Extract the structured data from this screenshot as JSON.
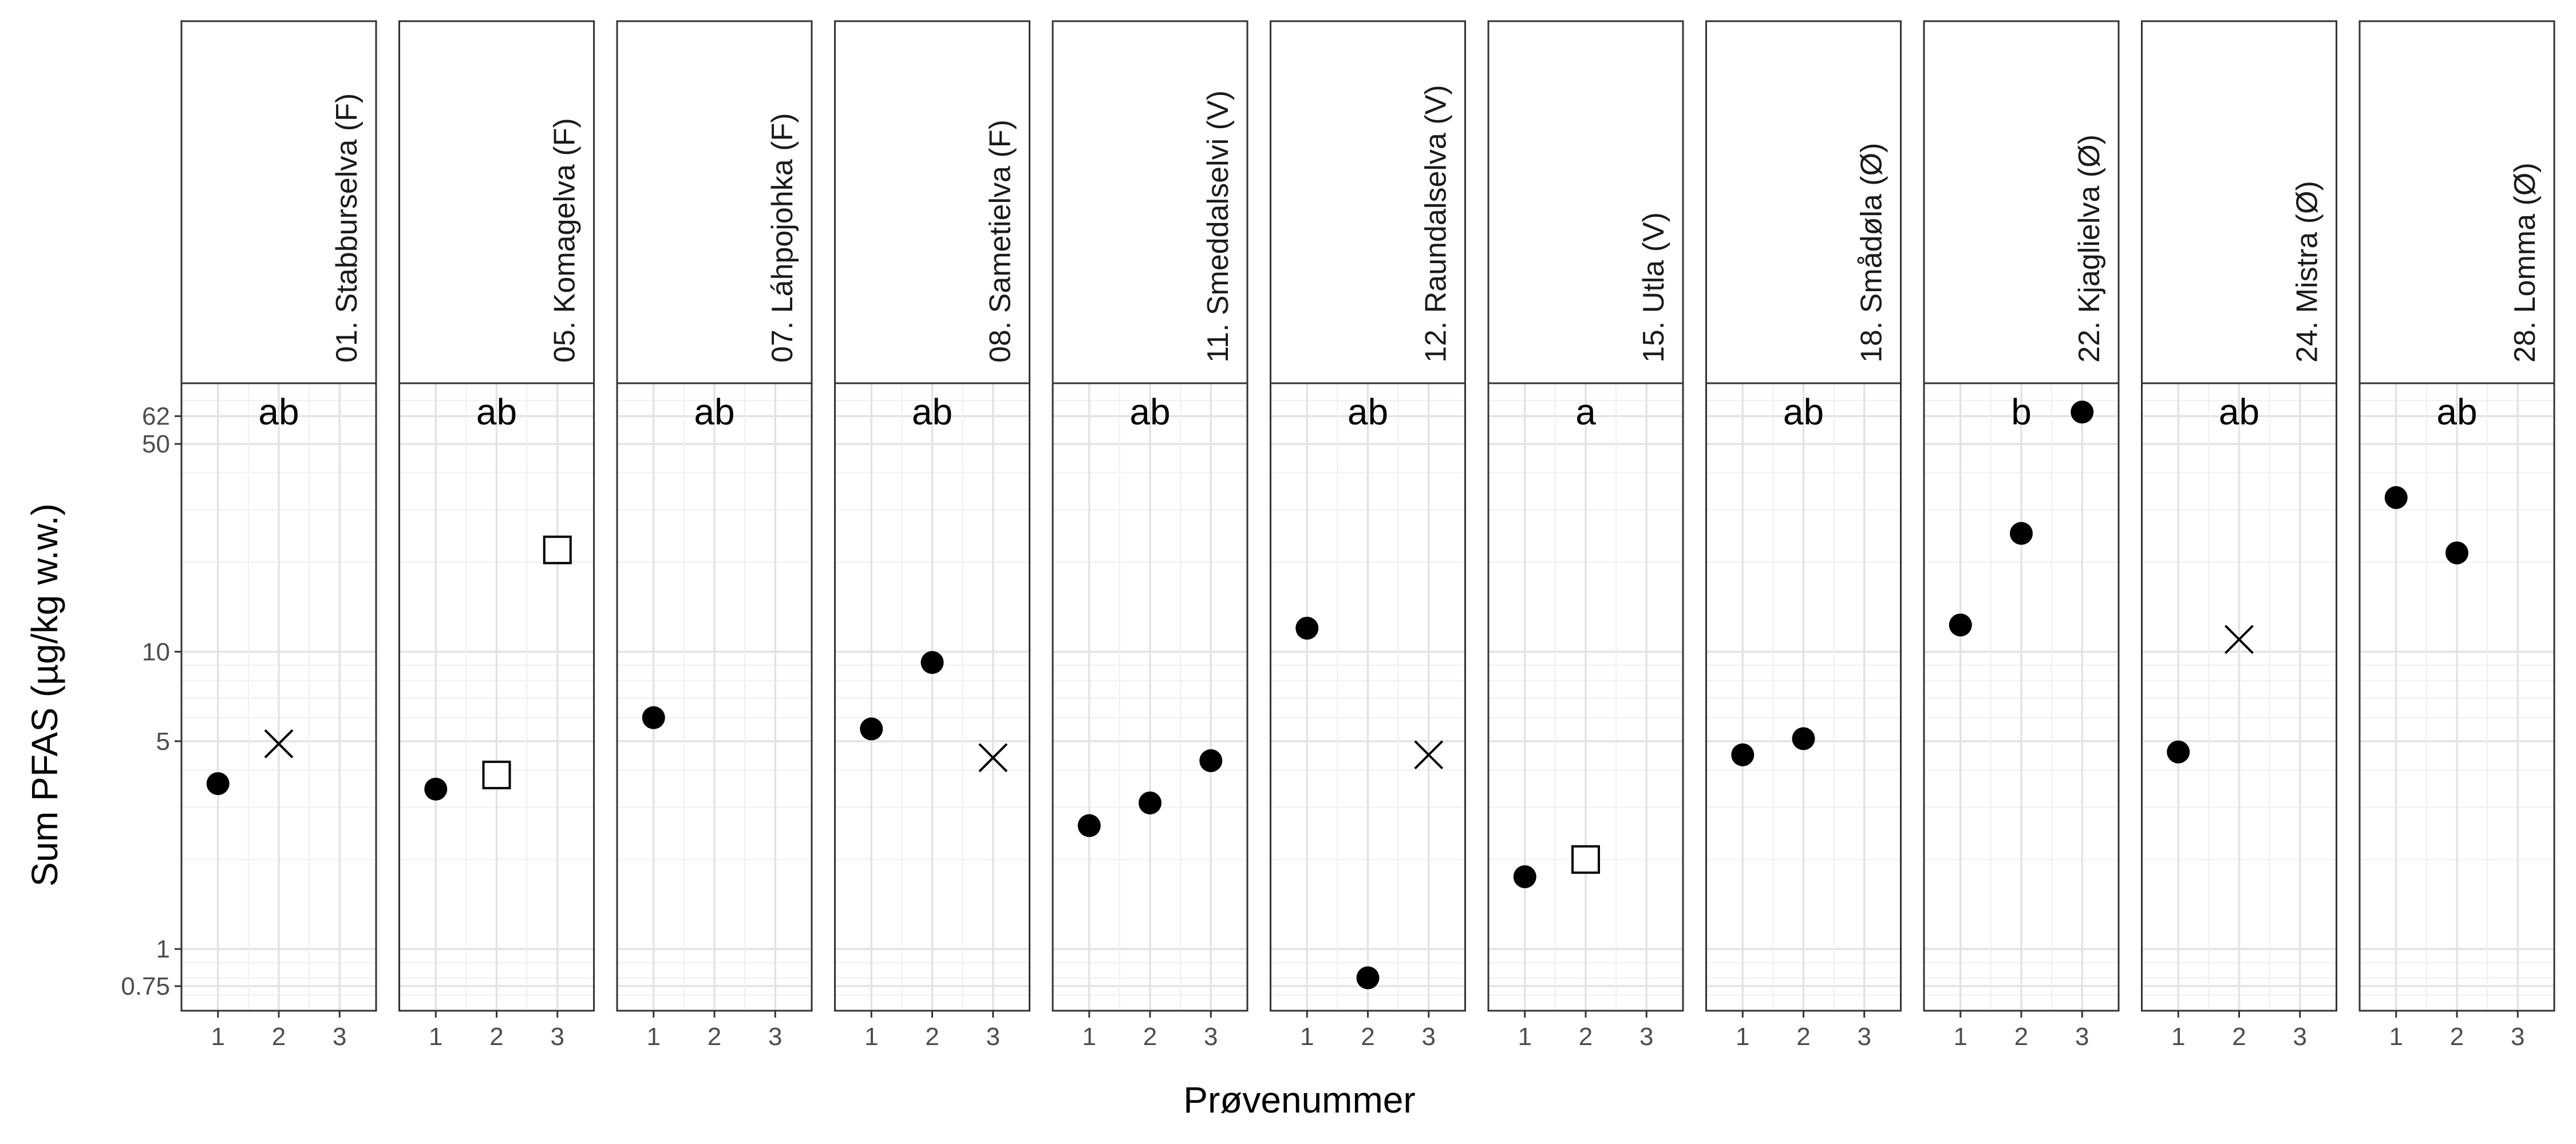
{
  "chart_data": {
    "type": "scatter",
    "xlabel": "Prøvenummer",
    "ylabel": "Sum PFAS (µg/kg w.w.)",
    "y_scale": "log",
    "ylim": [
      0.62,
      80
    ],
    "y_ticks": [
      {
        "value": 0.75,
        "label": "0.75"
      },
      {
        "value": 1,
        "label": "1"
      },
      {
        "value": 5,
        "label": "5"
      },
      {
        "value": 10,
        "label": "10"
      },
      {
        "value": 50,
        "label": "50"
      },
      {
        "value": 62,
        "label": "62"
      }
    ],
    "x_ticks": [
      "1",
      "2",
      "3"
    ],
    "xlim": [
      0.4,
      3.6
    ],
    "grid": true,
    "marker_colors": {
      "fill": "#000000",
      "stroke": "#000000",
      "open_fill": "#ffffff"
    },
    "panels": [
      {
        "label": "01. Stabburselva (F)",
        "group": "ab",
        "points": [
          {
            "x": 1,
            "y": 3.6,
            "shape": "circle"
          },
          {
            "x": 2,
            "y": 4.9,
            "shape": "cross"
          }
        ]
      },
      {
        "label": "05. Komagelva (F)",
        "group": "ab",
        "points": [
          {
            "x": 1,
            "y": 3.45,
            "shape": "circle"
          },
          {
            "x": 2,
            "y": 3.85,
            "shape": "square"
          },
          {
            "x": 3,
            "y": 22,
            "shape": "square"
          }
        ]
      },
      {
        "label": "07. Láhpojohka (F)",
        "group": "ab",
        "points": [
          {
            "x": 1,
            "y": 6.0,
            "shape": "circle"
          }
        ]
      },
      {
        "label": "08. Sametielva (F)",
        "group": "ab",
        "points": [
          {
            "x": 1,
            "y": 5.5,
            "shape": "circle"
          },
          {
            "x": 2,
            "y": 9.2,
            "shape": "circle"
          },
          {
            "x": 3,
            "y": 4.4,
            "shape": "cross"
          }
        ]
      },
      {
        "label": "11. Smeddalselvi (V)",
        "group": "ab",
        "points": [
          {
            "x": 1,
            "y": 2.6,
            "shape": "circle"
          },
          {
            "x": 2,
            "y": 3.1,
            "shape": "circle"
          },
          {
            "x": 3,
            "y": 4.3,
            "shape": "circle"
          }
        ]
      },
      {
        "label": "12. Raundalselva (V)",
        "group": "ab",
        "points": [
          {
            "x": 1,
            "y": 12,
            "shape": "circle"
          },
          {
            "x": 2,
            "y": 0.8,
            "shape": "circle"
          },
          {
            "x": 3,
            "y": 4.5,
            "shape": "cross"
          }
        ]
      },
      {
        "label": "15. Utla (V)",
        "group": "a",
        "points": [
          {
            "x": 1,
            "y": 1.75,
            "shape": "circle"
          },
          {
            "x": 2,
            "y": 2.0,
            "shape": "square"
          }
        ]
      },
      {
        "label": "18. Smådøla (Ø)",
        "group": "ab",
        "points": [
          {
            "x": 1,
            "y": 4.5,
            "shape": "circle"
          },
          {
            "x": 2,
            "y": 5.1,
            "shape": "circle"
          }
        ]
      },
      {
        "label": "22. Kjaglielva (Ø)",
        "group": "b",
        "points": [
          {
            "x": 1,
            "y": 12.3,
            "shape": "circle"
          },
          {
            "x": 2,
            "y": 25,
            "shape": "circle"
          },
          {
            "x": 3,
            "y": 64,
            "shape": "circle"
          }
        ]
      },
      {
        "label": "24. Mistra (Ø)",
        "group": "ab",
        "points": [
          {
            "x": 1,
            "y": 4.6,
            "shape": "circle"
          },
          {
            "x": 2,
            "y": 11.0,
            "shape": "cross"
          }
        ]
      },
      {
        "label": "28. Lomma (Ø)",
        "group": "ab",
        "points": [
          {
            "x": 1,
            "y": 33,
            "shape": "circle"
          },
          {
            "x": 2,
            "y": 21.5,
            "shape": "circle"
          }
        ]
      }
    ]
  }
}
